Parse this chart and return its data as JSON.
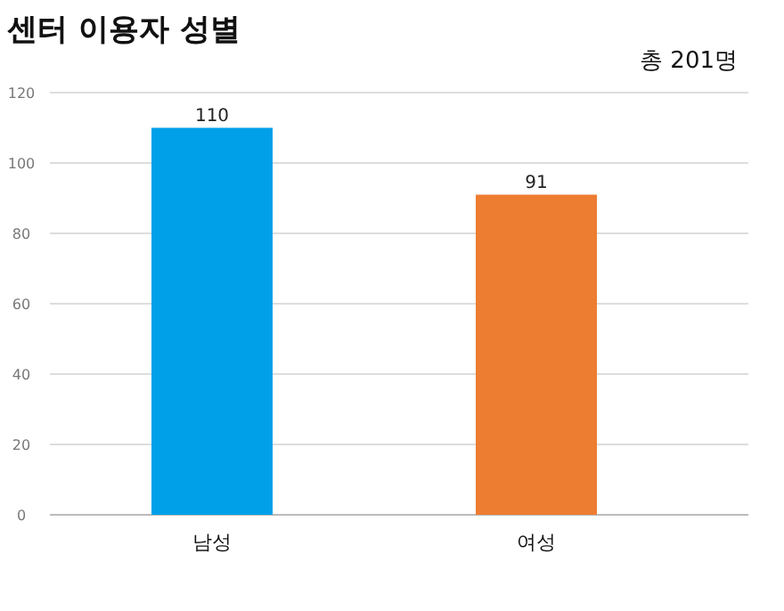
{
  "chart_data": {
    "type": "bar",
    "title": "센터 이용자 성별",
    "annotations": [
      "총 201명"
    ],
    "categories": [
      "남성",
      "여성"
    ],
    "values": [
      110,
      91
    ],
    "colors": [
      "#00a0e9",
      "#ed7d31"
    ],
    "ylim": [
      0,
      120
    ],
    "yticks": [
      0,
      20,
      40,
      60,
      80,
      100,
      120
    ],
    "grid": "y",
    "data_labels": true
  }
}
